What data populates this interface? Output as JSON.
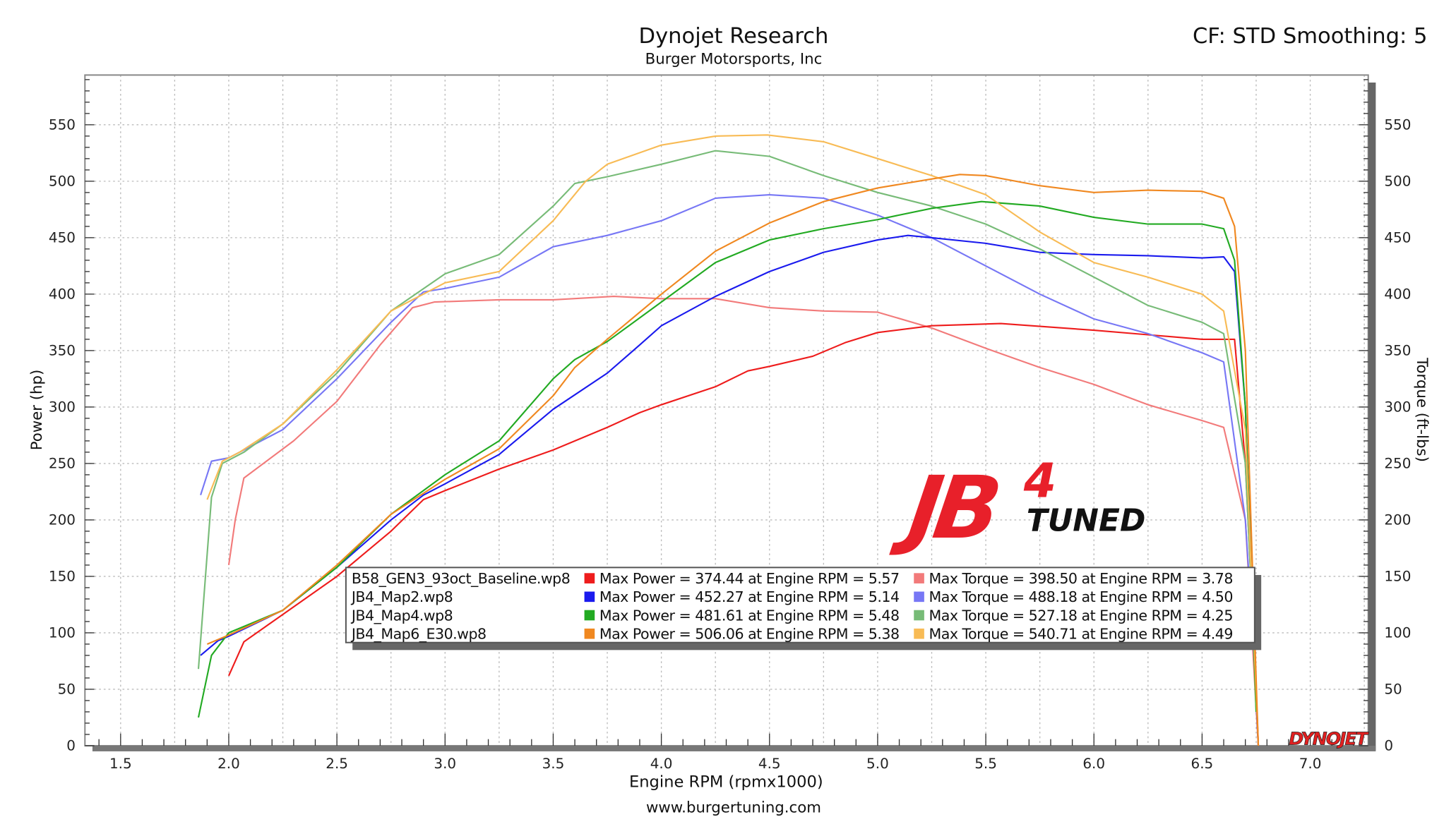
{
  "header": {
    "title": "Dynojet Research",
    "subtitle": "Burger Motorsports, Inc",
    "settings": "CF: STD Smoothing: 5",
    "footer": "www.burgertuning.com"
  },
  "logos": {
    "jb4_main": "JB4",
    "jb4_sub": "TUNED",
    "dynojet": "DYNOJET"
  },
  "chart_data": {
    "type": "line",
    "title": "Dynojet Research",
    "xlabel": "Engine RPM (rpmx1000)",
    "ylabel": "Power (hp)",
    "y2label": "Torque (ft-lbs)",
    "xlim": [
      1.33,
      7.28
    ],
    "ylim": [
      0,
      590
    ],
    "xticks": [
      "1.5",
      "2.0",
      "2.5",
      "3.0",
      "3.5",
      "4.0",
      "4.5",
      "5.0",
      "5.5",
      "6.0",
      "6.5",
      "7.0"
    ],
    "yticks": [
      "0",
      "50",
      "100",
      "150",
      "200",
      "250",
      "300",
      "350",
      "400",
      "450",
      "500",
      "550"
    ],
    "grid": true,
    "legend_position": "bottom-center",
    "runs": [
      {
        "file": "B58_GEN3_93oct_Baseline.wp8",
        "power_color": "#ee1c1c",
        "torque_color": "#f27a7a",
        "max_power": "Max Power = 374.44 at Engine RPM = 5.57",
        "max_torque": "Max Torque = 398.50 at Engine RPM = 3.78",
        "power": [
          [
            2.0,
            62
          ],
          [
            2.07,
            92
          ],
          [
            2.5,
            150
          ],
          [
            2.75,
            190
          ],
          [
            2.9,
            218
          ],
          [
            3.0,
            226
          ],
          [
            3.25,
            245
          ],
          [
            3.5,
            262
          ],
          [
            3.75,
            282
          ],
          [
            3.9,
            295
          ],
          [
            4.0,
            302
          ],
          [
            4.25,
            318
          ],
          [
            4.4,
            332
          ],
          [
            4.5,
            336
          ],
          [
            4.7,
            345
          ],
          [
            4.85,
            357
          ],
          [
            5.0,
            366
          ],
          [
            5.25,
            372
          ],
          [
            5.57,
            374
          ],
          [
            6.0,
            368
          ],
          [
            6.25,
            364
          ],
          [
            6.5,
            360
          ],
          [
            6.65,
            360
          ],
          [
            6.7,
            250
          ],
          [
            6.75,
            50
          ],
          [
            6.76,
            0
          ]
        ],
        "torque": [
          [
            2.0,
            160
          ],
          [
            2.03,
            200
          ],
          [
            2.07,
            237
          ],
          [
            2.3,
            270
          ],
          [
            2.5,
            305
          ],
          [
            2.7,
            355
          ],
          [
            2.85,
            388
          ],
          [
            2.95,
            393
          ],
          [
            3.25,
            395
          ],
          [
            3.5,
            395
          ],
          [
            3.78,
            398
          ],
          [
            4.0,
            396
          ],
          [
            4.25,
            396
          ],
          [
            4.5,
            388
          ],
          [
            4.75,
            385
          ],
          [
            5.0,
            384
          ],
          [
            5.25,
            370
          ],
          [
            5.5,
            352
          ],
          [
            5.75,
            335
          ],
          [
            6.0,
            320
          ],
          [
            6.25,
            302
          ],
          [
            6.5,
            288
          ],
          [
            6.6,
            282
          ],
          [
            6.7,
            200
          ],
          [
            6.76,
            0
          ]
        ]
      },
      {
        "file": "JB4_Map2.wp8",
        "power_color": "#1a1aee",
        "torque_color": "#7777f5",
        "max_power": "Max Power = 452.27 at Engine RPM = 5.14",
        "max_torque": "Max Torque = 488.18 at Engine RPM = 4.50",
        "power": [
          [
            1.87,
            80
          ],
          [
            1.95,
            93
          ],
          [
            2.0,
            97
          ],
          [
            2.25,
            120
          ],
          [
            2.5,
            158
          ],
          [
            2.75,
            200
          ],
          [
            2.9,
            222
          ],
          [
            3.0,
            232
          ],
          [
            3.25,
            258
          ],
          [
            3.5,
            298
          ],
          [
            3.75,
            330
          ],
          [
            3.9,
            355
          ],
          [
            4.0,
            372
          ],
          [
            4.25,
            398
          ],
          [
            4.5,
            420
          ],
          [
            4.75,
            437
          ],
          [
            5.0,
            448
          ],
          [
            5.14,
            452
          ],
          [
            5.25,
            450
          ],
          [
            5.5,
            445
          ],
          [
            5.75,
            437
          ],
          [
            6.0,
            435
          ],
          [
            6.25,
            434
          ],
          [
            6.5,
            432
          ],
          [
            6.6,
            433
          ],
          [
            6.65,
            420
          ],
          [
            6.7,
            300
          ],
          [
            6.75,
            40
          ],
          [
            6.76,
            0
          ]
        ],
        "torque": [
          [
            1.87,
            222
          ],
          [
            1.92,
            252
          ],
          [
            2.0,
            255
          ],
          [
            2.25,
            280
          ],
          [
            2.5,
            325
          ],
          [
            2.75,
            375
          ],
          [
            2.9,
            402
          ],
          [
            3.0,
            405
          ],
          [
            3.25,
            415
          ],
          [
            3.5,
            442
          ],
          [
            3.75,
            452
          ],
          [
            4.0,
            465
          ],
          [
            4.25,
            485
          ],
          [
            4.5,
            488
          ],
          [
            4.75,
            485
          ],
          [
            5.0,
            470
          ],
          [
            5.25,
            450
          ],
          [
            5.5,
            425
          ],
          [
            5.75,
            400
          ],
          [
            6.0,
            378
          ],
          [
            6.25,
            365
          ],
          [
            6.5,
            348
          ],
          [
            6.6,
            340
          ],
          [
            6.7,
            200
          ],
          [
            6.75,
            50
          ]
        ]
      },
      {
        "file": "JB4_Map4.wp8",
        "power_color": "#22aa22",
        "torque_color": "#77bb77",
        "max_power": "Max Power = 481.61 at Engine RPM = 5.48",
        "max_torque": "Max Torque = 527.18 at Engine RPM = 4.25",
        "power": [
          [
            1.86,
            25
          ],
          [
            1.92,
            80
          ],
          [
            2.0,
            100
          ],
          [
            2.25,
            120
          ],
          [
            2.5,
            158
          ],
          [
            2.75,
            205
          ],
          [
            3.0,
            240
          ],
          [
            3.25,
            270
          ],
          [
            3.5,
            325
          ],
          [
            3.6,
            342
          ],
          [
            3.75,
            358
          ],
          [
            4.0,
            393
          ],
          [
            4.25,
            428
          ],
          [
            4.5,
            448
          ],
          [
            4.75,
            458
          ],
          [
            5.0,
            466
          ],
          [
            5.25,
            476
          ],
          [
            5.48,
            482
          ],
          [
            5.75,
            478
          ],
          [
            6.0,
            468
          ],
          [
            6.25,
            462
          ],
          [
            6.5,
            462
          ],
          [
            6.6,
            458
          ],
          [
            6.65,
            430
          ],
          [
            6.7,
            300
          ],
          [
            6.75,
            30
          ]
        ],
        "torque": [
          [
            1.86,
            68
          ],
          [
            1.92,
            220
          ],
          [
            1.97,
            250
          ],
          [
            2.07,
            260
          ],
          [
            2.25,
            285
          ],
          [
            2.5,
            330
          ],
          [
            2.75,
            385
          ],
          [
            3.0,
            418
          ],
          [
            3.25,
            435
          ],
          [
            3.5,
            478
          ],
          [
            3.6,
            498
          ],
          [
            3.75,
            504
          ],
          [
            4.0,
            515
          ],
          [
            4.25,
            527
          ],
          [
            4.5,
            522
          ],
          [
            4.75,
            505
          ],
          [
            5.0,
            490
          ],
          [
            5.25,
            478
          ],
          [
            5.5,
            462
          ],
          [
            5.75,
            440
          ],
          [
            6.0,
            415
          ],
          [
            6.25,
            390
          ],
          [
            6.5,
            375
          ],
          [
            6.6,
            365
          ],
          [
            6.7,
            250
          ],
          [
            6.75,
            50
          ]
        ]
      },
      {
        "file": "JB4_Map6_E30.wp8",
        "power_color": "#f08820",
        "torque_color": "#f8bb55",
        "max_power": "Max Power = 506.06 at Engine RPM = 5.38",
        "max_torque": "Max Torque = 540.71 at Engine RPM = 4.49",
        "power": [
          [
            1.9,
            90
          ],
          [
            2.0,
            98
          ],
          [
            2.25,
            120
          ],
          [
            2.5,
            160
          ],
          [
            2.75,
            205
          ],
          [
            3.0,
            236
          ],
          [
            3.25,
            263
          ],
          [
            3.5,
            310
          ],
          [
            3.6,
            335
          ],
          [
            3.75,
            360
          ],
          [
            4.0,
            400
          ],
          [
            4.25,
            438
          ],
          [
            4.5,
            463
          ],
          [
            4.75,
            482
          ],
          [
            5.0,
            494
          ],
          [
            5.25,
            502
          ],
          [
            5.38,
            506
          ],
          [
            5.5,
            505
          ],
          [
            5.75,
            496
          ],
          [
            6.0,
            490
          ],
          [
            6.25,
            492
          ],
          [
            6.5,
            491
          ],
          [
            6.6,
            485
          ],
          [
            6.65,
            460
          ],
          [
            6.7,
            350
          ],
          [
            6.76,
            0
          ]
        ],
        "torque": [
          [
            1.9,
            218
          ],
          [
            1.97,
            252
          ],
          [
            2.05,
            260
          ],
          [
            2.25,
            285
          ],
          [
            2.5,
            333
          ],
          [
            2.75,
            385
          ],
          [
            3.0,
            410
          ],
          [
            3.25,
            420
          ],
          [
            3.5,
            465
          ],
          [
            3.65,
            500
          ],
          [
            3.75,
            515
          ],
          [
            4.0,
            532
          ],
          [
            4.25,
            540
          ],
          [
            4.49,
            541
          ],
          [
            4.75,
            535
          ],
          [
            5.0,
            520
          ],
          [
            5.25,
            505
          ],
          [
            5.5,
            488
          ],
          [
            5.75,
            455
          ],
          [
            6.0,
            428
          ],
          [
            6.25,
            415
          ],
          [
            6.5,
            400
          ],
          [
            6.6,
            385
          ],
          [
            6.7,
            280
          ],
          [
            6.76,
            0
          ]
        ]
      }
    ]
  }
}
